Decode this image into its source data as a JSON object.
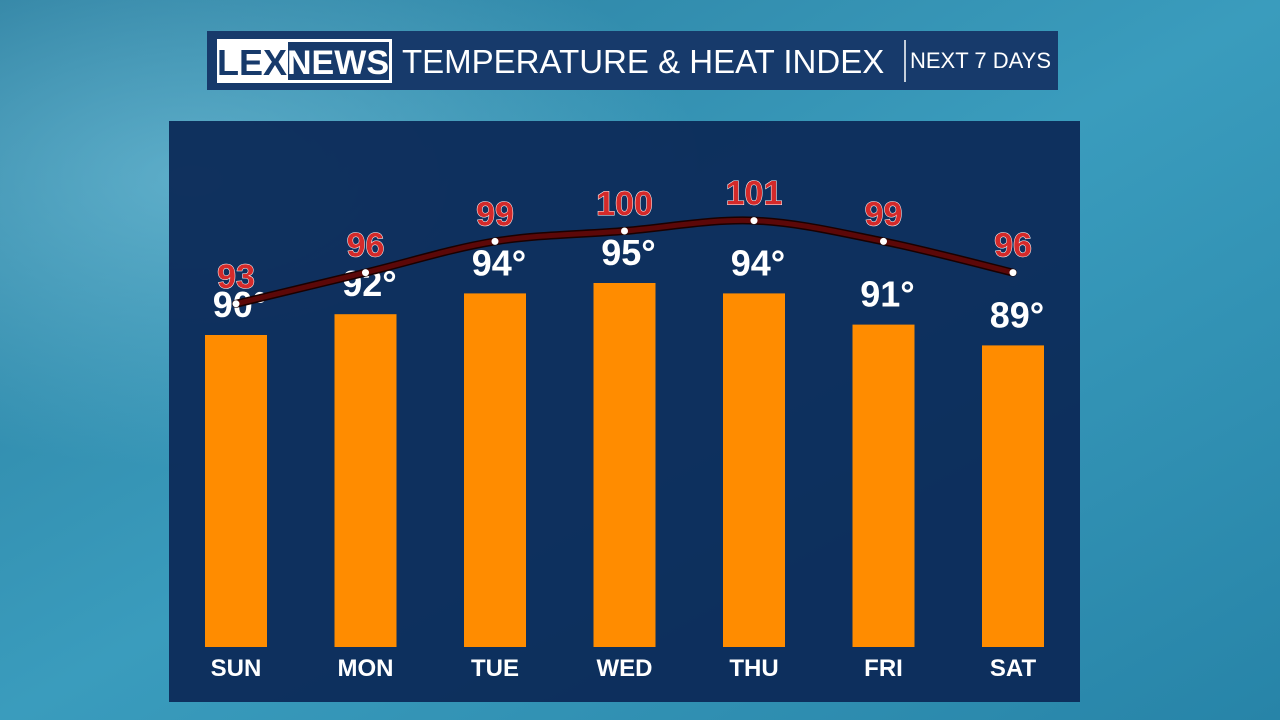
{
  "brand": {
    "left": "LEX",
    "right": "NEWS"
  },
  "chart_data": {
    "type": "bar-line",
    "title": "TEMPERATURE & HEAT INDEX",
    "subtitle": "NEXT 7 DAYS",
    "categories": [
      "SUN",
      "MON",
      "TUE",
      "WED",
      "THU",
      "FRI",
      "SAT"
    ],
    "ylim": [
      60,
      110
    ],
    "series": [
      {
        "type": "bar",
        "color": "#ff8c00",
        "values": [
          90,
          92,
          94,
          95,
          94,
          91,
          89
        ],
        "value_labels": [
          "90°",
          "92°",
          "94°",
          "95°",
          "94°",
          "91°",
          "89°"
        ]
      },
      {
        "type": "line",
        "color": "#5c0808",
        "values": [
          93,
          96,
          99,
          100,
          101,
          99,
          96
        ]
      }
    ]
  }
}
